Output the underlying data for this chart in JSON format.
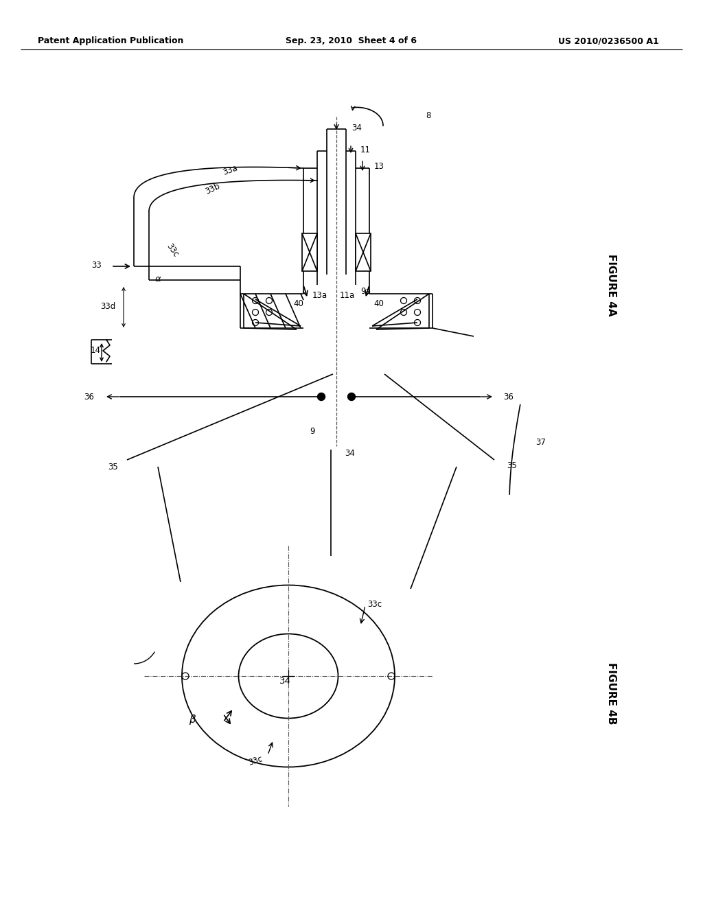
{
  "bg_color": "#ffffff",
  "header_left": "Patent Application Publication",
  "header_center": "Sep. 23, 2010  Sheet 4 of 6",
  "header_right": "US 2010/0236500 A1",
  "figure_4a_label": "FIGURE 4A",
  "figure_4b_label": "FIGURE 4B"
}
